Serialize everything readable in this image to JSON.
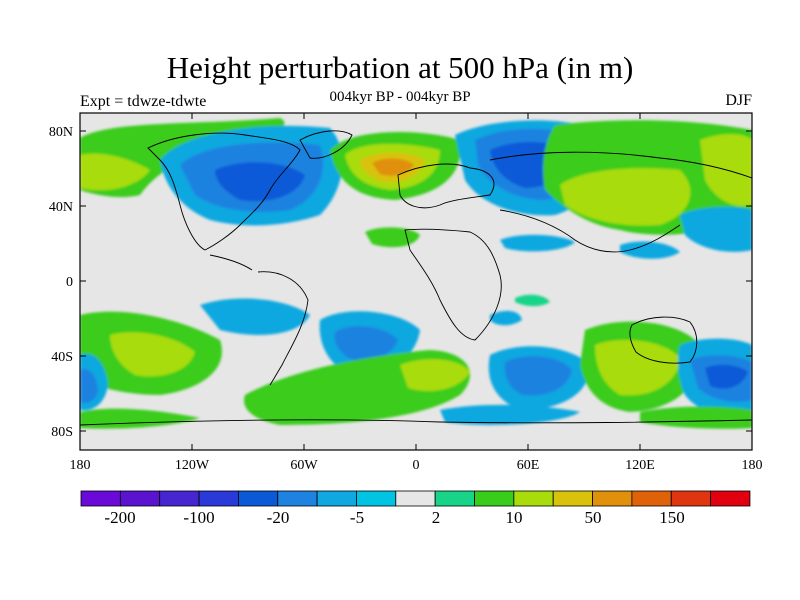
{
  "header": {
    "title": "Height perturbation at 500 hPa (in m)",
    "subtitle": "004kyr BP - 004kyr BP",
    "left": "Expt = tdwze-tdwte",
    "right": "DJF"
  },
  "axes": {
    "y_ticks": [
      "80N",
      "40N",
      "0",
      "40S",
      "80S"
    ],
    "x_ticks": [
      "180",
      "120W",
      "60W",
      "0",
      "60E",
      "120E",
      "180"
    ]
  },
  "colorbar": {
    "colors": [
      "#6a0ad8",
      "#5a14d0",
      "#4626d0",
      "#2a3ad8",
      "#0a5ad8",
      "#1e82e0",
      "#10a8e0",
      "#00c4e2",
      "#e6e6e6",
      "#18d488",
      "#3acc1a",
      "#a8dc0a",
      "#d8c20c",
      "#e0900a",
      "#e06208",
      "#e03610",
      "#e00010"
    ],
    "labels": [
      "-200",
      "-100",
      "-20",
      "-5",
      "2",
      "10",
      "50",
      "150"
    ]
  }
}
